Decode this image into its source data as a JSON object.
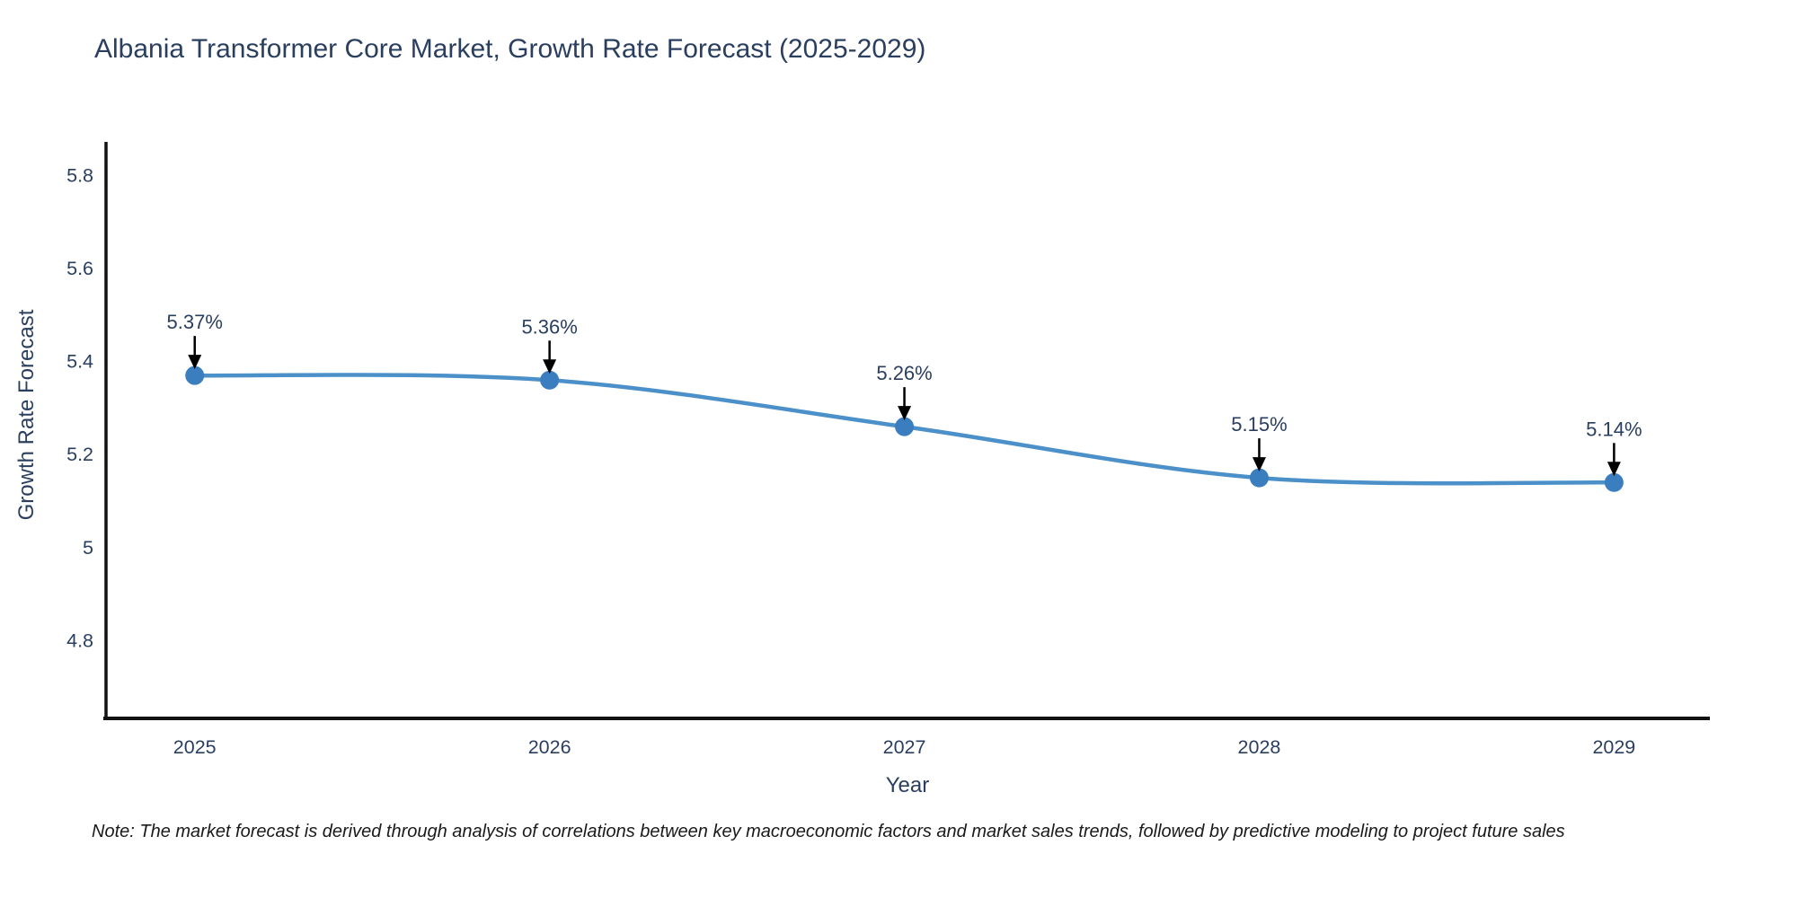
{
  "title": "Albania Transformer Core Market, Growth Rate Forecast (2025-2029)",
  "footnote": "Note: The market forecast is derived through analysis of correlations between key macroeconomic factors and market sales trends, followed by predictive modeling to project future sales",
  "chart_data": {
    "type": "line",
    "x": [
      2025,
      2026,
      2027,
      2028,
      2029
    ],
    "series": [
      {
        "name": "Growth Rate Forecast",
        "values": [
          5.37,
          5.36,
          5.26,
          5.15,
          5.14
        ],
        "point_labels": [
          "5.37%",
          "5.36%",
          "5.26%",
          "5.15%",
          "5.14%"
        ]
      }
    ],
    "title": "Albania Transformer Core Market, Growth Rate Forecast (2025-2029)",
    "xlabel": "Year",
    "ylabel": "Growth Rate Forecast",
    "xticks": [
      "2025",
      "2026",
      "2027",
      "2028",
      "2029"
    ],
    "yticks": [
      "4.8",
      "5",
      "5.2",
      "5.4",
      "5.6",
      "5.8"
    ],
    "ytick_values": [
      4.8,
      5.0,
      5.2,
      5.4,
      5.6,
      5.8
    ],
    "xlim": [
      2024.75,
      2029.27
    ],
    "ylim": [
      4.633,
      5.872
    ],
    "grid": false,
    "legend": "none",
    "line_shape": "spline",
    "annotations_arrow": "down",
    "colors": {
      "line": "#4b90c9",
      "marker": "#3a7ebf",
      "axis": "#111111",
      "tick_text": "#2a3f5f",
      "annotation_text": "#2a3f5f",
      "annotation_arrow": "#000000",
      "background": "#ffffff"
    }
  }
}
